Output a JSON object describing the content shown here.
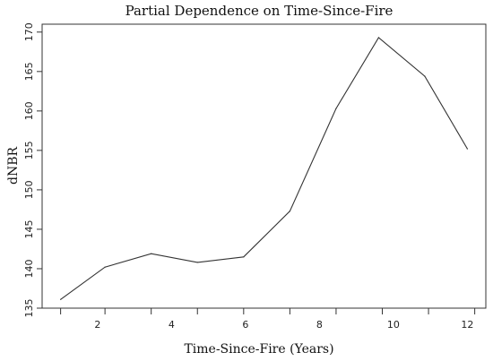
{
  "chart_data": {
    "type": "line",
    "title": "Partial Dependence on Time-Since-Fire",
    "xlabel": "Time-Since-Fire (Years)",
    "ylabel": "dNBR",
    "xlim": [
      0.5,
      12.5
    ],
    "ylim": [
      135,
      171
    ],
    "x_ticks": [
      2,
      4,
      6,
      8,
      10,
      12
    ],
    "x_minor_ticks": [
      1,
      2.2,
      3.45,
      4.7,
      5.95,
      7.2,
      8.45,
      9.7,
      10.95,
      12.2
    ],
    "y_ticks": [
      135,
      140,
      145,
      150,
      155,
      160,
      165,
      170
    ],
    "grid": false,
    "series": [
      {
        "x": [
          1.0,
          2.2,
          3.45,
          4.7,
          5.95,
          7.2,
          8.45,
          9.6,
          10.85,
          12.0
        ],
        "y": [
          136.1,
          140.2,
          141.9,
          140.8,
          141.5,
          147.3,
          160.3,
          169.3,
          164.4,
          155.2
        ]
      }
    ]
  }
}
